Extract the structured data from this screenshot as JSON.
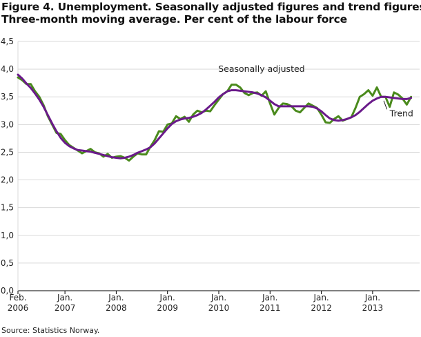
{
  "title_line1": "Figure 4. Unemployment. Seasonally adjusted figures and trend figures.",
  "title_line2": "Three-month moving average. Per cent of the labour force",
  "source": "Source: Statistics Norway.",
  "colors": {
    "seasonally_adjusted": "#4a8a1c",
    "trend": "#6a1a8a",
    "grid": "#d9d9d9",
    "axis": "#000000"
  },
  "chart_data": {
    "type": "line",
    "ylim": [
      0,
      4.5
    ],
    "yticks": [
      0,
      0.5,
      1.0,
      1.5,
      2.0,
      2.5,
      3.0,
      3.5,
      4.0,
      4.5
    ],
    "ytick_labels": [
      "0,0",
      "0,5",
      "1,0",
      "1,5",
      "2,0",
      "2,5",
      "3,0",
      "3,5",
      "4,0",
      "4,5"
    ],
    "xlim": [
      0,
      94
    ],
    "xticks": [
      {
        "x": 0,
        "line1": "Feb.",
        "line2": "2006"
      },
      {
        "x": 11,
        "line1": "Jan.",
        "line2": "2007"
      },
      {
        "x": 23,
        "line1": "Jan.",
        "line2": "2008"
      },
      {
        "x": 35,
        "line1": "Jan.",
        "line2": "2009"
      },
      {
        "x": 47,
        "line1": "Jan.",
        "line2": "2010"
      },
      {
        "x": 59,
        "line1": "Jan.",
        "line2": "2011"
      },
      {
        "x": 71,
        "line1": "Jan.",
        "line2": "2012"
      },
      {
        "x": 83,
        "line1": "Jan.",
        "line2": "2013"
      }
    ],
    "series": [
      {
        "name": "Seasonally adjusted",
        "values": [
          3.85,
          3.8,
          3.73,
          3.73,
          3.6,
          3.5,
          3.35,
          3.15,
          3.0,
          2.85,
          2.83,
          2.72,
          2.63,
          2.58,
          2.53,
          2.48,
          2.52,
          2.56,
          2.5,
          2.48,
          2.42,
          2.47,
          2.4,
          2.42,
          2.43,
          2.4,
          2.35,
          2.42,
          2.48,
          2.46,
          2.46,
          2.6,
          2.72,
          2.88,
          2.87,
          3.0,
          3.02,
          3.15,
          3.1,
          3.14,
          3.05,
          3.18,
          3.25,
          3.22,
          3.25,
          3.24,
          3.35,
          3.45,
          3.55,
          3.6,
          3.72,
          3.72,
          3.67,
          3.57,
          3.53,
          3.57,
          3.58,
          3.52,
          3.6,
          3.38,
          3.18,
          3.3,
          3.38,
          3.37,
          3.33,
          3.25,
          3.22,
          3.3,
          3.38,
          3.34,
          3.3,
          3.18,
          3.04,
          3.03,
          3.1,
          3.15,
          3.07,
          3.1,
          3.13,
          3.3,
          3.5,
          3.55,
          3.62,
          3.52,
          3.67,
          3.5,
          3.5,
          3.32,
          3.58,
          3.54,
          3.47,
          3.36,
          3.5
        ]
      },
      {
        "name": "Trend",
        "values": [
          3.9,
          3.83,
          3.74,
          3.66,
          3.56,
          3.45,
          3.32,
          3.17,
          3.02,
          2.88,
          2.76,
          2.67,
          2.61,
          2.57,
          2.54,
          2.53,
          2.52,
          2.51,
          2.49,
          2.47,
          2.45,
          2.43,
          2.41,
          2.4,
          2.39,
          2.4,
          2.42,
          2.45,
          2.49,
          2.52,
          2.55,
          2.59,
          2.66,
          2.75,
          2.84,
          2.93,
          3.01,
          3.06,
          3.09,
          3.11,
          3.12,
          3.14,
          3.17,
          3.21,
          3.27,
          3.34,
          3.41,
          3.49,
          3.55,
          3.6,
          3.62,
          3.62,
          3.61,
          3.6,
          3.59,
          3.58,
          3.56,
          3.53,
          3.49,
          3.43,
          3.37,
          3.33,
          3.33,
          3.33,
          3.33,
          3.33,
          3.33,
          3.33,
          3.33,
          3.32,
          3.29,
          3.24,
          3.17,
          3.11,
          3.08,
          3.07,
          3.08,
          3.1,
          3.13,
          3.17,
          3.23,
          3.3,
          3.37,
          3.43,
          3.47,
          3.5,
          3.5,
          3.49,
          3.48,
          3.47,
          3.46,
          3.46,
          3.48
        ]
      }
    ],
    "annotations": [
      {
        "text": "Seasonally adjusted",
        "x": 57,
        "y": 3.95
      },
      {
        "text": "Trend",
        "x": 87,
        "y": 3.15
      }
    ]
  }
}
